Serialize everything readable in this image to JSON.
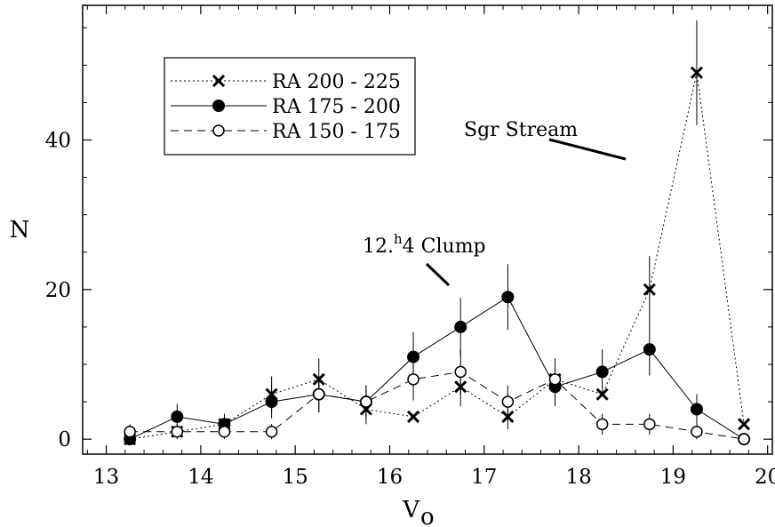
{
  "chart_data": {
    "type": "line",
    "xlabel": "V",
    "xlabel_sub": "o",
    "ylabel": "N",
    "xlim": [
      12.75,
      20.05
    ],
    "ylim": [
      -2,
      58
    ],
    "xticks": [
      13,
      14,
      15,
      16,
      17,
      18,
      19,
      20
    ],
    "yticks": [
      0,
      20,
      40
    ],
    "grid": false,
    "legend_position": "top-left",
    "series": [
      {
        "name": "RA 200 - 225",
        "marker": "cross",
        "line_style": "dotted",
        "x": [
          13.25,
          13.75,
          14.25,
          14.75,
          15.25,
          15.75,
          16.25,
          16.75,
          17.25,
          17.75,
          18.25,
          18.75,
          19.25,
          19.75
        ],
        "y": [
          0,
          1,
          2,
          6,
          8,
          4,
          3,
          7,
          3,
          8,
          6,
          20,
          49,
          2
        ],
        "err": [
          0,
          0,
          0,
          2.4,
          2.8,
          2,
          0,
          2.6,
          1.7,
          2.8,
          0,
          4.5,
          7,
          0
        ]
      },
      {
        "name": "RA 175 - 200",
        "marker": "filled-circle",
        "line_style": "solid",
        "x": [
          13.25,
          13.75,
          14.25,
          14.75,
          15.25,
          15.75,
          16.25,
          16.75,
          17.25,
          17.75,
          18.25,
          18.75,
          19.25,
          19.75
        ],
        "y": [
          0,
          3,
          2,
          5,
          6,
          5,
          11,
          15,
          19,
          7,
          9,
          12,
          4,
          0
        ],
        "err": [
          0,
          1.7,
          1.4,
          2.2,
          2.4,
          2.2,
          3.3,
          3.9,
          4.4,
          2.6,
          3,
          3.5,
          2,
          0
        ]
      },
      {
        "name": "RA 150 - 175",
        "marker": "open-circle",
        "line_style": "dashed",
        "x": [
          13.25,
          13.75,
          14.25,
          14.75,
          15.25,
          15.75,
          16.25,
          16.75,
          17.25,
          17.75,
          18.25,
          18.75,
          19.25,
          19.75
        ],
        "y": [
          1,
          1,
          1,
          1,
          6,
          5,
          8,
          9,
          5,
          8,
          2,
          2,
          1,
          0
        ],
        "err": [
          1,
          1,
          1,
          1,
          2.4,
          2.2,
          2.8,
          3,
          2.2,
          2.8,
          1.4,
          1.4,
          1,
          0
        ]
      }
    ],
    "annotations": [
      {
        "text": "Sgr Stream"
      },
      {
        "text_main": "12.",
        "text_sup": "h",
        "text_rest": "4 Clump"
      }
    ],
    "colors": {
      "ink": "#000000",
      "background": "#ffffff"
    }
  }
}
